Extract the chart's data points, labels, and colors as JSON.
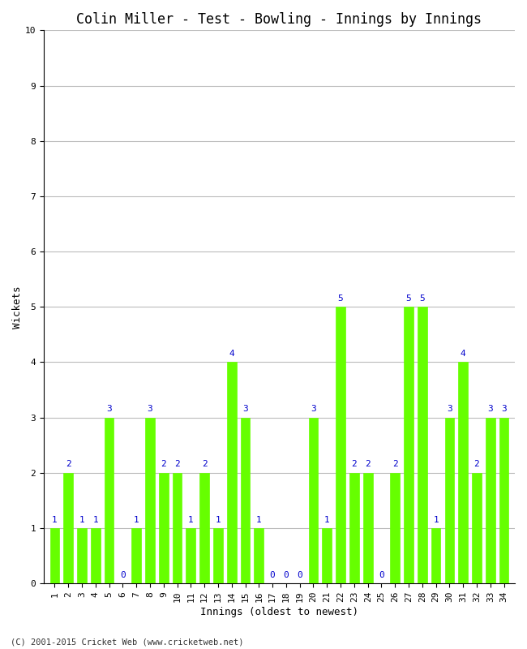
{
  "title": "Colin Miller - Test - Bowling - Innings by Innings",
  "xlabel": "Innings (oldest to newest)",
  "ylabel": "Wickets",
  "footnote": "(C) 2001-2015 Cricket Web (www.cricketweb.net)",
  "bar_color": "#66ff00",
  "bar_edge_color": "#66ff00",
  "label_color": "#0000cc",
  "ylim": [
    0,
    10
  ],
  "yticks": [
    0,
    1,
    2,
    3,
    4,
    5,
    6,
    7,
    8,
    9,
    10
  ],
  "innings": [
    1,
    2,
    3,
    4,
    5,
    6,
    7,
    8,
    9,
    10,
    11,
    12,
    13,
    14,
    15,
    16,
    17,
    18,
    19,
    20,
    21,
    22,
    23,
    24,
    25,
    26,
    27,
    28,
    29,
    30,
    31,
    32,
    33,
    34
  ],
  "wickets": [
    1,
    2,
    1,
    1,
    3,
    0,
    1,
    3,
    2,
    2,
    1,
    2,
    1,
    4,
    3,
    1,
    0,
    0,
    0,
    3,
    1,
    5,
    2,
    2,
    0,
    2,
    5,
    5,
    1,
    3,
    4,
    2,
    3,
    3
  ],
  "background_color": "#ffffff",
  "grid_color": "#bbbbbb",
  "title_fontsize": 12,
  "axis_fontsize": 9,
  "label_fontsize": 8,
  "tick_fontsize": 8,
  "bar_width": 0.7
}
